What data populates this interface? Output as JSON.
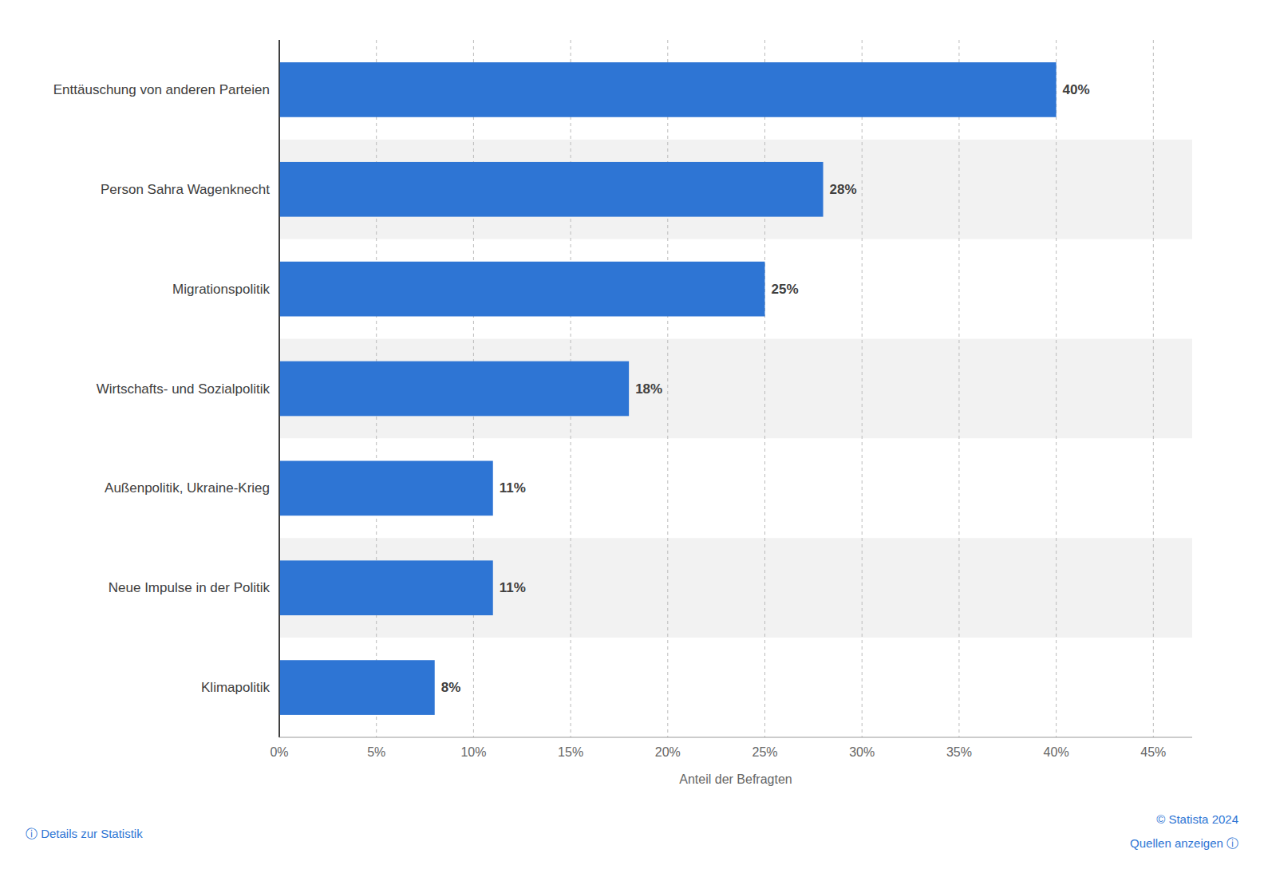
{
  "chart_data": {
    "type": "bar",
    "orientation": "horizontal",
    "categories": [
      "Enttäuschung von anderen Parteien",
      "Person Sahra Wagenknecht",
      "Migrationspolitik",
      "Wirtschafts- und Sozialpolitik",
      "Außenpolitik, Ukraine-Krieg",
      "Neue Impulse in der Politik",
      "Klimapolitik"
    ],
    "values": [
      40,
      28,
      25,
      18,
      11,
      11,
      8
    ],
    "value_labels": [
      "40%",
      "28%",
      "25%",
      "18%",
      "11%",
      "11%",
      "8%"
    ],
    "data_labels": true,
    "color": "#2E75D4",
    "xlabel": "Anteil der Befragten",
    "xlim": [
      0,
      47
    ],
    "xticks": [
      {
        "value": 0,
        "label": "0%"
      },
      {
        "value": 5,
        "label": "5%"
      },
      {
        "value": 10,
        "label": "10%"
      },
      {
        "value": 15,
        "label": "15%"
      },
      {
        "value": 20,
        "label": "20%"
      },
      {
        "value": 25,
        "label": "25%"
      },
      {
        "value": 30,
        "label": "30%"
      },
      {
        "value": 35,
        "label": "35%"
      },
      {
        "value": 40,
        "label": "40%"
      },
      {
        "value": 45,
        "label": "45%"
      }
    ],
    "grid": true,
    "annotations": [
      "ⓘ  Details zur Statistik",
      "© Statista 2024",
      "Quellen anzeigen  ⓘ"
    ]
  }
}
